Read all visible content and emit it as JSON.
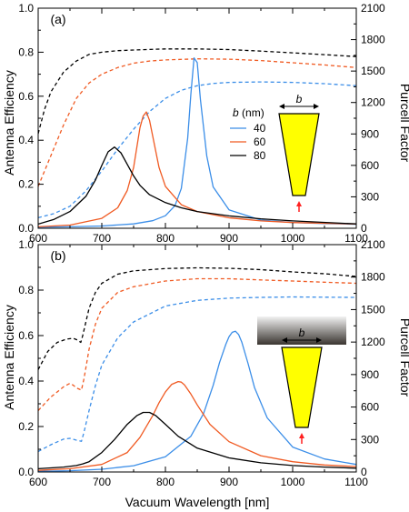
{
  "colors": {
    "blue": "#3b8ee8",
    "orange": "#f05a22",
    "black": "#000000",
    "antenna_fill": "#ffff00",
    "arrow": "#ff2020"
  },
  "shared": {
    "xlabel": "Vacuum Wavelength [nm]",
    "ylabel_left": "Antenna Efficiency",
    "ylabel_right": "Purcell Factor",
    "x_ticks": [
      "600",
      "700",
      "800",
      "900",
      "1000",
      "1100"
    ],
    "yL_ticks": [
      "0.0",
      "0.2",
      "0.4",
      "0.6",
      "0.8",
      "1.0"
    ],
    "yR_ticks": [
      "0",
      "300",
      "600",
      "900",
      "1200",
      "1500",
      "1800",
      "2100"
    ]
  },
  "chart_data": [
    {
      "type": "line",
      "panel_label": "(a)",
      "xlabel": "",
      "ylabel": "Antenna Efficiency",
      "ylabel_right": "Purcell Factor",
      "xlim": [
        600,
        1100
      ],
      "ylim": [
        0,
        1
      ],
      "ylim_right": [
        0,
        2100
      ],
      "grid": false,
      "legend": {
        "title": "b (nm)",
        "title_var": "b",
        "title_unit": " (nm)",
        "position": "center-right",
        "entries": [
          {
            "label": "40",
            "color": "#3b8ee8"
          },
          {
            "label": "60",
            "color": "#f05a22"
          },
          {
            "label": "80",
            "color": "#000000"
          }
        ]
      },
      "inset": {
        "label": "b",
        "shape": "tapered antenna",
        "with_substrate": false
      },
      "series": [
        {
          "name": "40",
          "axis": "left",
          "style": "dashed",
          "color": "#3b8ee8",
          "x": [
            600,
            625,
            650,
            675,
            700,
            725,
            750,
            775,
            800,
            825,
            850,
            875,
            900,
            950,
            1000,
            1050,
            1100
          ],
          "y": [
            0.048,
            0.067,
            0.1,
            0.17,
            0.26,
            0.36,
            0.45,
            0.53,
            0.59,
            0.627,
            0.648,
            0.658,
            0.663,
            0.665,
            0.663,
            0.657,
            0.648
          ]
        },
        {
          "name": "60",
          "axis": "left",
          "style": "dashed",
          "color": "#f05a22",
          "x": [
            600,
            620,
            640,
            660,
            680,
            700,
            725,
            750,
            775,
            800,
            850,
            900,
            950,
            1000,
            1050,
            1100
          ],
          "y": [
            0.19,
            0.33,
            0.47,
            0.59,
            0.66,
            0.7,
            0.73,
            0.75,
            0.76,
            0.765,
            0.77,
            0.768,
            0.762,
            0.752,
            0.742,
            0.73
          ]
        },
        {
          "name": "80",
          "axis": "left",
          "style": "dashed",
          "color": "#000000",
          "x": [
            600,
            610,
            620,
            640,
            660,
            680,
            700,
            725,
            750,
            800,
            850,
            900,
            950,
            1000,
            1050,
            1100
          ],
          "y": [
            0.43,
            0.54,
            0.62,
            0.71,
            0.76,
            0.79,
            0.8,
            0.807,
            0.81,
            0.815,
            0.815,
            0.812,
            0.805,
            0.797,
            0.789,
            0.78
          ]
        },
        {
          "name": "40",
          "axis": "right",
          "style": "solid",
          "color": "#3b8ee8",
          "x": [
            600,
            650,
            700,
            750,
            780,
            800,
            815,
            825,
            835,
            840,
            845,
            850,
            855,
            865,
            875,
            900,
            950,
            1000,
            1050,
            1100
          ],
          "y": [
            10,
            14,
            22,
            42,
            72,
            120,
            215,
            380,
            860,
            1280,
            1625,
            1580,
            1230,
            690,
            395,
            175,
            78,
            55,
            44,
            38
          ]
        },
        {
          "name": "60",
          "axis": "right",
          "style": "solid",
          "color": "#f05a22",
          "x": [
            600,
            650,
            700,
            725,
            740,
            750,
            760,
            765,
            770,
            775,
            780,
            790,
            800,
            825,
            850,
            900,
            950,
            1000,
            1100
          ],
          "y": [
            14,
            30,
            95,
            195,
            360,
            580,
            960,
            1070,
            1110,
            1030,
            880,
            580,
            400,
            225,
            160,
            100,
            70,
            55,
            40
          ]
        },
        {
          "name": "80",
          "axis": "right",
          "style": "solid",
          "color": "#000000",
          "x": [
            600,
            625,
            650,
            675,
            690,
            700,
            710,
            720,
            730,
            740,
            750,
            760,
            775,
            800,
            825,
            850,
            900,
            950,
            1000,
            1100
          ],
          "y": [
            40,
            85,
            160,
            305,
            460,
            600,
            730,
            775,
            720,
            610,
            500,
            410,
            320,
            245,
            195,
            160,
            118,
            90,
            70,
            42
          ]
        }
      ]
    },
    {
      "type": "line",
      "panel_label": "(b)",
      "xlabel": "Vacuum Wavelength [nm]",
      "ylabel": "Antenna Efficiency",
      "ylabel_right": "Purcell Factor",
      "xlim": [
        600,
        1100
      ],
      "ylim": [
        0,
        1
      ],
      "ylim_right": [
        0,
        2100
      ],
      "grid": false,
      "inset": {
        "label": "b",
        "shape": "tapered antenna",
        "with_substrate": true
      },
      "series": [
        {
          "name": "40",
          "axis": "left",
          "style": "dashed",
          "color": "#3b8ee8",
          "x": [
            600,
            620,
            640,
            650,
            660,
            668,
            672,
            680,
            690,
            700,
            725,
            750,
            800,
            850,
            900,
            950,
            1000,
            1050,
            1100
          ],
          "y": [
            0.09,
            0.12,
            0.145,
            0.148,
            0.14,
            0.135,
            0.175,
            0.27,
            0.38,
            0.47,
            0.59,
            0.66,
            0.73,
            0.755,
            0.765,
            0.768,
            0.77,
            0.769,
            0.768
          ]
        },
        {
          "name": "60",
          "axis": "left",
          "style": "dashed",
          "color": "#f05a22",
          "x": [
            600,
            620,
            640,
            650,
            655,
            660,
            668,
            672,
            680,
            690,
            700,
            725,
            750,
            800,
            850,
            900,
            950,
            1000,
            1050,
            1100
          ],
          "y": [
            0.27,
            0.33,
            0.375,
            0.39,
            0.382,
            0.37,
            0.36,
            0.41,
            0.54,
            0.65,
            0.72,
            0.79,
            0.815,
            0.84,
            0.85,
            0.85,
            0.845,
            0.84,
            0.835,
            0.83
          ]
        },
        {
          "name": "80",
          "axis": "left",
          "style": "dashed",
          "color": "#000000",
          "x": [
            600,
            615,
            630,
            645,
            655,
            662,
            667,
            670,
            675,
            680,
            690,
            700,
            725,
            750,
            800,
            850,
            900,
            950,
            1000,
            1050,
            1100
          ],
          "y": [
            0.45,
            0.53,
            0.57,
            0.585,
            0.588,
            0.58,
            0.57,
            0.6,
            0.66,
            0.72,
            0.79,
            0.83,
            0.87,
            0.885,
            0.895,
            0.898,
            0.896,
            0.89,
            0.88,
            0.872,
            0.86
          ]
        },
        {
          "name": "40",
          "axis": "right",
          "style": "solid",
          "color": "#3b8ee8",
          "x": [
            600,
            650,
            700,
            750,
            800,
            840,
            860,
            875,
            885,
            895,
            900,
            905,
            910,
            915,
            920,
            930,
            940,
            960,
            1000,
            1050,
            1100
          ],
          "y": [
            6,
            12,
            25,
            58,
            140,
            330,
            540,
            800,
            1010,
            1180,
            1250,
            1290,
            1300,
            1270,
            1200,
            1000,
            780,
            500,
            230,
            120,
            70
          ]
        },
        {
          "name": "60",
          "axis": "right",
          "style": "solid",
          "color": "#f05a22",
          "x": [
            600,
            650,
            700,
            740,
            760,
            780,
            790,
            800,
            810,
            820,
            825,
            830,
            840,
            850,
            870,
            900,
            950,
            1000,
            1050,
            1100
          ],
          "y": [
            15,
            30,
            70,
            180,
            320,
            520,
            640,
            740,
            810,
            835,
            830,
            805,
            720,
            620,
            440,
            280,
            150,
            95,
            65,
            50
          ]
        },
        {
          "name": "80",
          "axis": "right",
          "style": "solid",
          "color": "#000000",
          "x": [
            600,
            640,
            660,
            670,
            680,
            700,
            720,
            740,
            755,
            765,
            775,
            785,
            800,
            820,
            850,
            900,
            950,
            1000,
            1050,
            1100
          ],
          "y": [
            30,
            45,
            60,
            75,
            95,
            180,
            300,
            440,
            520,
            550,
            550,
            520,
            440,
            330,
            220,
            130,
            85,
            60,
            45,
            35
          ]
        }
      ]
    }
  ]
}
